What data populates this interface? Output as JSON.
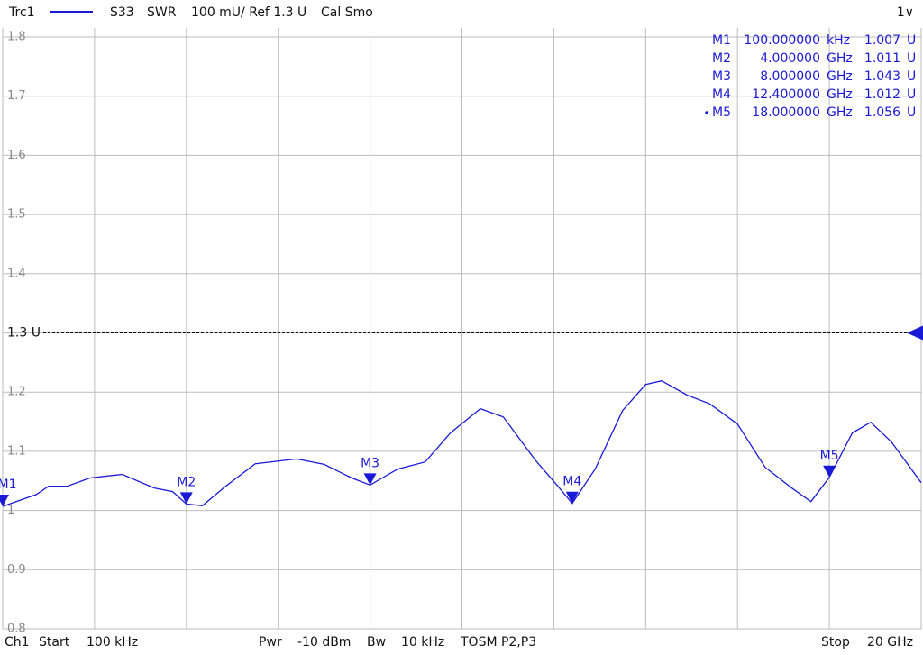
{
  "chart_data": {
    "type": "line",
    "header": {
      "trace": "Trc1",
      "parameter": "S33",
      "format": "SWR",
      "scale": "100 mU/ Ref 1.3 U",
      "cal": "Cal Smo",
      "channel_select": "1∨"
    },
    "footer": {
      "channel": "Ch1",
      "start_label": "Start",
      "start": "100 kHz",
      "pwr_label": "Pwr",
      "pwr": "-10 dBm",
      "bw_label": "Bw",
      "bw": "10 kHz",
      "cal": "TOSM P2,P3",
      "stop_label": "Stop",
      "stop": "20 GHz"
    },
    "xlim": [
      0.0001,
      20
    ],
    "ylim": [
      0.8,
      1.8
    ],
    "yticks": [
      1.8,
      1.7,
      1.6,
      1.5,
      1.4,
      {
        "value": 1.3,
        "label": "1.3 U"
      },
      1.2,
      1.1,
      1,
      0.9,
      0.8
    ],
    "reference_line": 1.3,
    "grid": true,
    "series": [
      {
        "name": "Trc1",
        "color": "#1a1ad6",
        "x": [
          0.0001,
          0.73,
          1.0,
          1.4,
          1.9,
          2.6,
          3.3,
          3.7,
          4.0,
          4.35,
          4.84,
          5.5,
          6.4,
          7.0,
          7.6,
          8.0,
          8.6,
          9.2,
          9.75,
          10.4,
          10.9,
          11.6,
          12.1,
          12.4,
          12.9,
          13.5,
          14.0,
          14.35,
          14.9,
          15.4,
          16.0,
          16.6,
          17.2,
          17.6,
          18.0,
          18.5,
          18.9,
          19.35,
          20.0
        ],
        "values": [
          1.007,
          1.027,
          1.041,
          1.041,
          1.055,
          1.061,
          1.038,
          1.032,
          1.011,
          1.008,
          1.04,
          1.079,
          1.087,
          1.078,
          1.055,
          1.043,
          1.07,
          1.082,
          1.131,
          1.172,
          1.158,
          1.085,
          1.04,
          1.012,
          1.07,
          1.169,
          1.213,
          1.219,
          1.195,
          1.18,
          1.146,
          1.073,
          1.037,
          1.015,
          1.056,
          1.131,
          1.149,
          1.116,
          1.047
        ]
      }
    ],
    "markers": [
      {
        "name": "M1",
        "x": 0.0001,
        "value": 1.007,
        "x_label": "100.000000",
        "x_unit": "kHz",
        "unit": "U"
      },
      {
        "name": "M2",
        "x": 4,
        "value": 1.011,
        "x_label": "4.000000",
        "x_unit": "GHz",
        "unit": "U"
      },
      {
        "name": "M3",
        "x": 8,
        "value": 1.043,
        "x_label": "8.000000",
        "x_unit": "GHz",
        "unit": "U"
      },
      {
        "name": "M4",
        "x": 12.4,
        "value": 1.012,
        "x_label": "12.400000",
        "x_unit": "GHz",
        "unit": "U"
      },
      {
        "name": "M5",
        "x": 18,
        "value": 1.056,
        "x_label": "18.000000",
        "x_unit": "GHz",
        "unit": "U"
      }
    ],
    "active_marker": 4
  }
}
